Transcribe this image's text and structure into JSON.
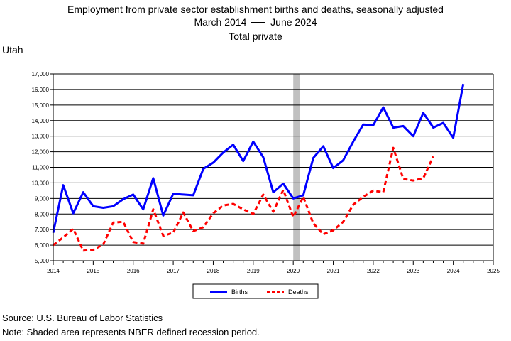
{
  "header": {
    "title": "Employment from private sector establishment births and deaths, seasonally adjusted",
    "subtitle_start": "March 2014",
    "subtitle_end": "June 2024",
    "subtitle_dash_color": "#000000",
    "subtitle2": "Total private",
    "region": "Utah"
  },
  "footer": {
    "source": "Source: U.S. Bureau of Labor Statistics",
    "note": "Note: Shaded area represents NBER defined recession period."
  },
  "chart_data": {
    "type": "line",
    "title": "Employment from private sector establishment births and deaths, seasonally adjusted",
    "subtitle": "March 2014 — June 2024 Total private",
    "xlabel": "",
    "ylabel": "",
    "xlim": [
      2014,
      2025
    ],
    "ylim": [
      5000,
      17000
    ],
    "x_ticks": [
      2014,
      2015,
      2016,
      2017,
      2018,
      2019,
      2020,
      2021,
      2022,
      2023,
      2024,
      2025
    ],
    "y_ticks": [
      5000,
      6000,
      7000,
      8000,
      9000,
      10000,
      11000,
      12000,
      13000,
      14000,
      15000,
      16000,
      17000
    ],
    "y_tick_labels": [
      "5,000",
      "6,000",
      "7,000",
      "8,000",
      "9,000",
      "10,000",
      "11,000",
      "12,000",
      "13,000",
      "14,000",
      "15,000",
      "16,000",
      "17,000"
    ],
    "grid": "horizontal",
    "legend_position": "bottom",
    "recession": {
      "start": 2020.0,
      "end": 2020.17,
      "color": "#c0c0c0"
    },
    "series": [
      {
        "name": "Births",
        "color": "#0000ff",
        "style": "solid",
        "x": [
          2014.0,
          2014.25,
          2014.5,
          2014.75,
          2015.0,
          2015.25,
          2015.5,
          2015.75,
          2016.0,
          2016.25,
          2016.5,
          2016.75,
          2017.0,
          2017.25,
          2017.5,
          2017.75,
          2018.0,
          2018.25,
          2018.5,
          2018.75,
          2019.0,
          2019.25,
          2019.5,
          2019.75,
          2020.0,
          2020.25,
          2020.5,
          2020.75,
          2021.0,
          2021.25,
          2021.5,
          2021.75,
          2022.0,
          2022.25,
          2022.5,
          2022.75,
          2023.0,
          2023.25,
          2023.5,
          2023.75,
          2024.0,
          2024.25
        ],
        "values": [
          6800,
          9850,
          8050,
          9400,
          8500,
          8400,
          8500,
          8950,
          9250,
          8300,
          10300,
          7900,
          9300,
          9250,
          9200,
          10900,
          11300,
          11950,
          12450,
          11400,
          12650,
          11650,
          9400,
          9950,
          9000,
          9200,
          11600,
          12350,
          10950,
          11450,
          12650,
          13750,
          13700,
          14850,
          13550,
          13650,
          13000,
          14500,
          13550,
          13850,
          12900,
          16350
        ]
      },
      {
        "name": "Deaths",
        "color": "#ff0000",
        "style": "dashed",
        "x": [
          2014.0,
          2014.25,
          2014.5,
          2014.75,
          2015.0,
          2015.25,
          2015.5,
          2015.75,
          2016.0,
          2016.25,
          2016.5,
          2016.75,
          2017.0,
          2017.25,
          2017.5,
          2017.75,
          2018.0,
          2018.25,
          2018.5,
          2018.75,
          2019.0,
          2019.25,
          2019.5,
          2019.75,
          2020.0,
          2020.25,
          2020.5,
          2020.75,
          2021.0,
          2021.25,
          2021.5,
          2021.75,
          2022.0,
          2022.25,
          2022.5,
          2022.75,
          2023.0,
          2023.25,
          2023.5
        ],
        "values": [
          6000,
          6500,
          7050,
          5650,
          5700,
          6050,
          7450,
          7500,
          6200,
          6100,
          8300,
          6600,
          6800,
          8100,
          6900,
          7150,
          8050,
          8550,
          8650,
          8300,
          8000,
          9250,
          8150,
          9550,
          7800,
          9100,
          7400,
          6700,
          6950,
          7500,
          8600,
          9100,
          9500,
          9400,
          12250,
          10250,
          10150,
          10300,
          11700
        ]
      }
    ]
  }
}
